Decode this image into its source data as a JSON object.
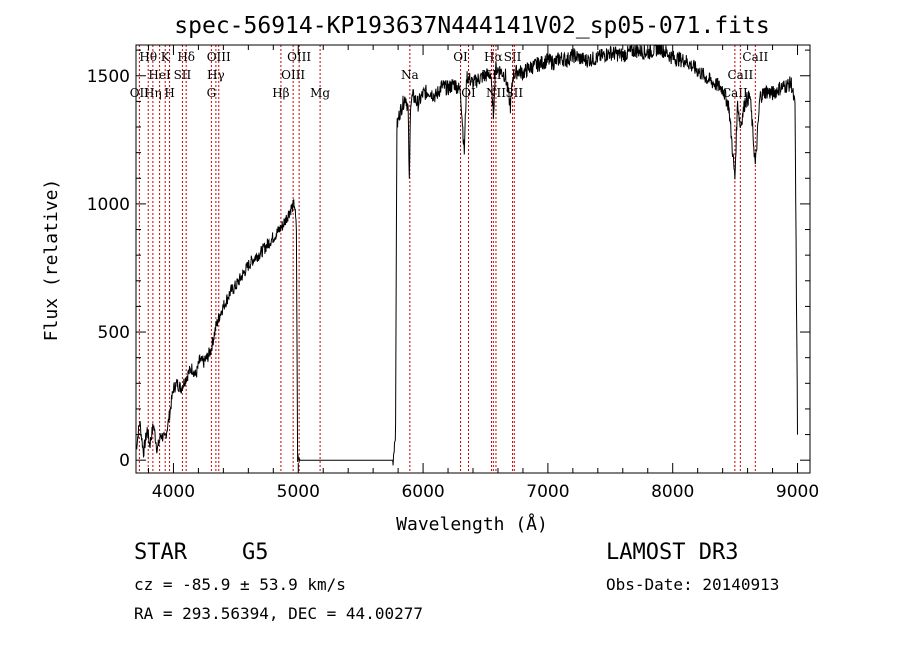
{
  "chart_data": {
    "type": "line",
    "title": "spec-56914-KP193637N444141V02_sp05-071.fits",
    "xlabel": "Wavelength (Å)",
    "ylabel": "Flux (relative)",
    "xlim": [
      3700,
      9100
    ],
    "ylim": [
      -50,
      1620
    ],
    "xticks": [
      4000,
      5000,
      6000,
      7000,
      8000,
      9000
    ],
    "yticks": [
      0,
      500,
      1000,
      1500
    ],
    "series": [
      {
        "name": "flux",
        "x": [
          3700,
          3730,
          3760,
          3790,
          3810,
          3840,
          3870,
          3900,
          3930,
          3960,
          4000,
          4030,
          4060,
          4090,
          4120,
          4150,
          4180,
          4210,
          4240,
          4270,
          4300,
          4340,
          4380,
          4420,
          4460,
          4500,
          4550,
          4600,
          4650,
          4700,
          4750,
          4800,
          4850,
          4880,
          4910,
          4940,
          4970,
          4985,
          4995,
          5000,
          5010,
          5100,
          5500,
          5700,
          5760,
          5780,
          5790,
          5810,
          5830,
          5860,
          5880,
          5890,
          5900,
          5920,
          5960,
          6000,
          6050,
          6100,
          6150,
          6200,
          6250,
          6300,
          6330,
          6350,
          6400,
          6450,
          6500,
          6540,
          6563,
          6580,
          6620,
          6660,
          6700,
          6720,
          6760,
          6800,
          6850,
          6900,
          6950,
          7000,
          7050,
          7100,
          7150,
          7200,
          7300,
          7400,
          7500,
          7600,
          7700,
          7800,
          7900,
          8000,
          8100,
          8200,
          8300,
          8400,
          8450,
          8498,
          8520,
          8542,
          8580,
          8620,
          8662,
          8700,
          8750,
          8800,
          8850,
          8900,
          8950,
          8980,
          9000
        ],
        "y": [
          40,
          150,
          30,
          120,
          60,
          140,
          40,
          100,
          80,
          150,
          280,
          300,
          280,
          310,
          340,
          360,
          330,
          390,
          380,
          400,
          430,
          520,
          580,
          620,
          660,
          680,
          720,
          760,
          790,
          810,
          840,
          870,
          900,
          920,
          950,
          980,
          1000,
          900,
          10,
          5,
          0,
          0,
          0,
          0,
          0,
          120,
          1300,
          1350,
          1380,
          1420,
          1370,
          1080,
          1400,
          1420,
          1390,
          1430,
          1440,
          1420,
          1460,
          1450,
          1470,
          1440,
          1200,
          1500,
          1470,
          1490,
          1500,
          1510,
          1350,
          1530,
          1520,
          1500,
          1380,
          1500,
          1520,
          1510,
          1530,
          1540,
          1550,
          1560,
          1550,
          1570,
          1560,
          1580,
          1560,
          1570,
          1590,
          1580,
          1600,
          1590,
          1610,
          1570,
          1560,
          1520,
          1480,
          1450,
          1380,
          1100,
          1400,
          1300,
          1400,
          1420,
          1150,
          1420,
          1440,
          1430,
          1450,
          1460,
          1470,
          1380,
          100
        ]
      }
    ],
    "lines": [
      {
        "name": "Hθ",
        "wave": 3798,
        "row": 0
      },
      {
        "name": "OII",
        "wave": 3727,
        "row": 2
      },
      {
        "name": "Hη",
        "wave": 3835,
        "row": 2
      },
      {
        "name": "HeI",
        "wave": 3889,
        "row": 1
      },
      {
        "name": "K",
        "wave": 3934,
        "row": 0
      },
      {
        "name": "H",
        "wave": 3969,
        "row": 2
      },
      {
        "name": "SII",
        "wave": 4072,
        "row": 1
      },
      {
        "name": "Hδ",
        "wave": 4102,
        "row": 0
      },
      {
        "name": "G",
        "wave": 4304,
        "row": 2
      },
      {
        "name": "Hγ",
        "wave": 4340,
        "row": 1
      },
      {
        "name": "OIII",
        "wave": 4363,
        "row": 0
      },
      {
        "name": "Hβ",
        "wave": 4861,
        "row": 2
      },
      {
        "name": "OIII",
        "wave": 4959,
        "row": 1
      },
      {
        "name": "OIII",
        "wave": 5007,
        "row": 0
      },
      {
        "name": "Mg",
        "wave": 5175,
        "row": 2
      },
      {
        "name": "Na",
        "wave": 5894,
        "row": 1
      },
      {
        "name": "OI",
        "wave": 6300,
        "row": 0
      },
      {
        "name": "OI",
        "wave": 6364,
        "row": 2
      },
      {
        "name": "NII",
        "wave": 6548,
        "row": 1
      },
      {
        "name": "Hα",
        "wave": 6563,
        "row": 0
      },
      {
        "name": "NII",
        "wave": 6584,
        "row": 2
      },
      {
        "name": "SII",
        "wave": 6717,
        "row": 0
      },
      {
        "name": "SII",
        "wave": 6731,
        "row": 2
      },
      {
        "name": "CaII",
        "wave": 8498,
        "row": 2
      },
      {
        "name": "CaII",
        "wave": 8542,
        "row": 1
      },
      {
        "name": "CaII",
        "wave": 8662,
        "row": 0
      }
    ],
    "line_color": "#cc0000"
  },
  "info": {
    "class": "STAR",
    "subclass": "G5",
    "survey": "LAMOST DR3",
    "cz": "cz = -85.9 ± 53.9 km/s",
    "obsdate": "Obs-Date: 20140913",
    "coords": "RA = 293.56394, DEC =  44.00277"
  }
}
